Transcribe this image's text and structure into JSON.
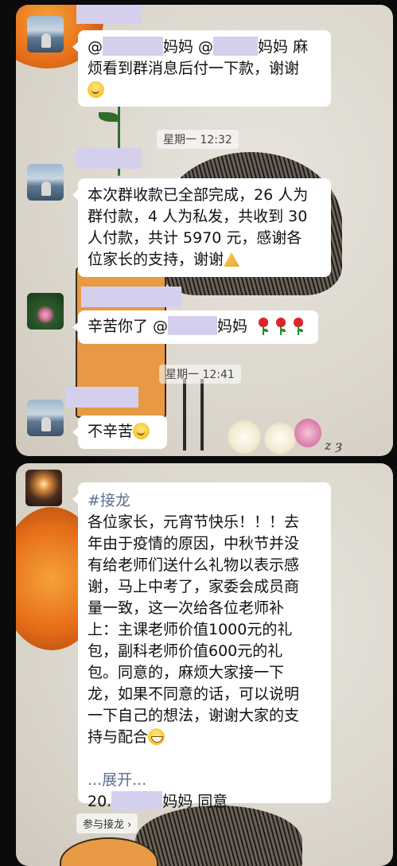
{
  "screen1": {
    "messages": [
      {
        "avatar": "lake-figure-avatar",
        "line1_a": "@",
        "line1_b": "妈妈 @",
        "line1_c": "妈妈 麻",
        "line2": "烦看到群消息后付一下款，谢谢",
        "emoji": "smile"
      },
      {
        "timestamp": "星期一 12:32"
      },
      {
        "avatar": "lake-figure-avatar",
        "lines": [
          "本次群收款已全部完成，26 人为",
          "群付款，4 人为私发，共收到 30",
          "人付款，共计 5970 元，感谢各",
          "位家长的支持，谢谢"
        ],
        "emoji": "pray"
      },
      {
        "avatar": "lotus-avatar",
        "text_a": "辛苦你了 @",
        "text_b": "妈妈",
        "emojis": [
          "rose",
          "rose",
          "rose"
        ]
      },
      {
        "timestamp": "星期一 12:41"
      },
      {
        "avatar": "lake-figure-avatar",
        "text": "不辛苦",
        "emoji": "smile"
      }
    ],
    "signature": "z ȝ"
  },
  "screen2": {
    "message": {
      "avatar": "candle-avatar",
      "tag": "#接龙",
      "lines": [
        "各位家长，元宵节快乐！！！去",
        "年由于疫情的原因，中秋节并没",
        "有给老师们送什么礼物以表示感",
        "谢，马上中考了，家委会成员商",
        "量一致，这一次给各位老师补",
        "上：主课老师价值1000元的礼",
        "包，副科老师价值600元的礼",
        "包。同意的，麻烦大家接一下",
        "龙，如果不同意的话，可以说明",
        "一下自己的想法，谢谢大家的支",
        "持与配合"
      ],
      "emoji": "grin",
      "expand_label": "...展开...",
      "entry_prefix": "20.",
      "entry_suffix": "妈妈 同意"
    },
    "join_button": "参与接龙 ›"
  }
}
